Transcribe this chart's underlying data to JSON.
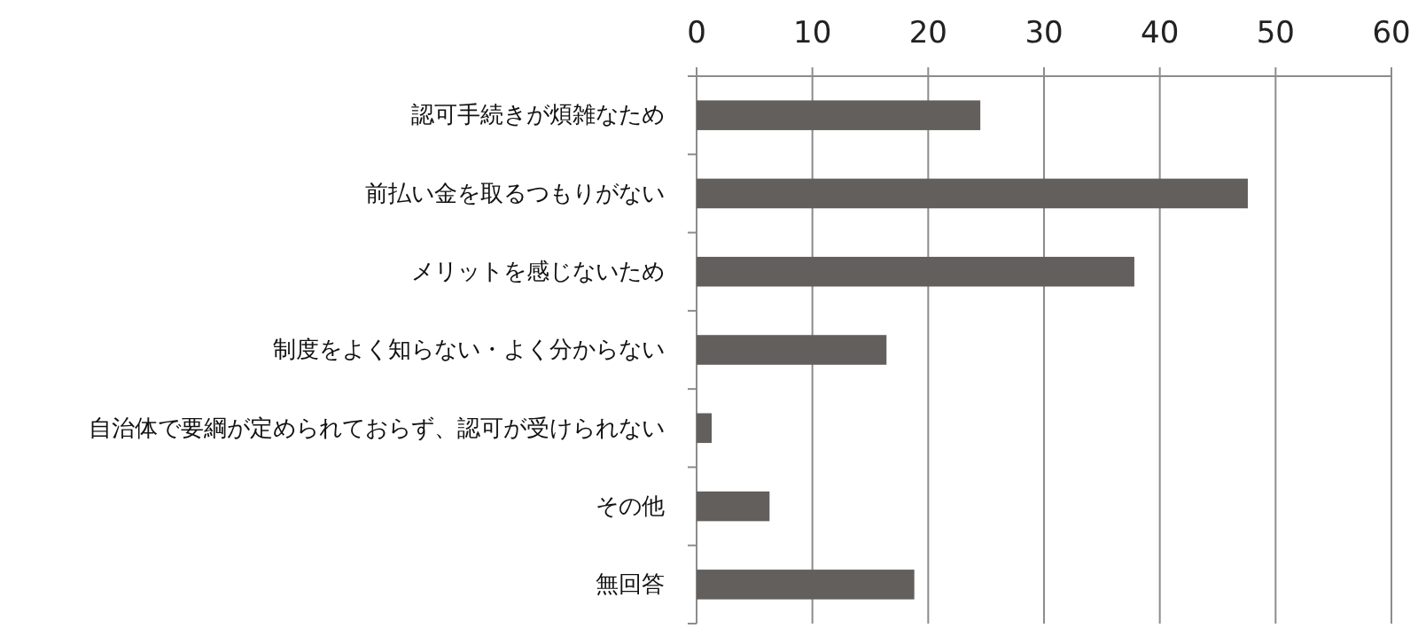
{
  "chart_data": {
    "type": "bar",
    "orientation": "horizontal",
    "categories": [
      "認可手続きが煩雑なため",
      "前払い金を取るつもりがない",
      "メリットを感じないため",
      "制度をよく知らない・よく分からない",
      "自治体で要綱が定められておらず、認可が受けられない",
      "その他",
      "無回答"
    ],
    "values": [
      24.5,
      47.6,
      37.8,
      16.4,
      1.3,
      6.3,
      18.8
    ],
    "color": "#625f5c",
    "xlim": [
      0,
      60
    ],
    "xticks": [
      0,
      10,
      20,
      30,
      40,
      50,
      60
    ],
    "grid": "x"
  }
}
